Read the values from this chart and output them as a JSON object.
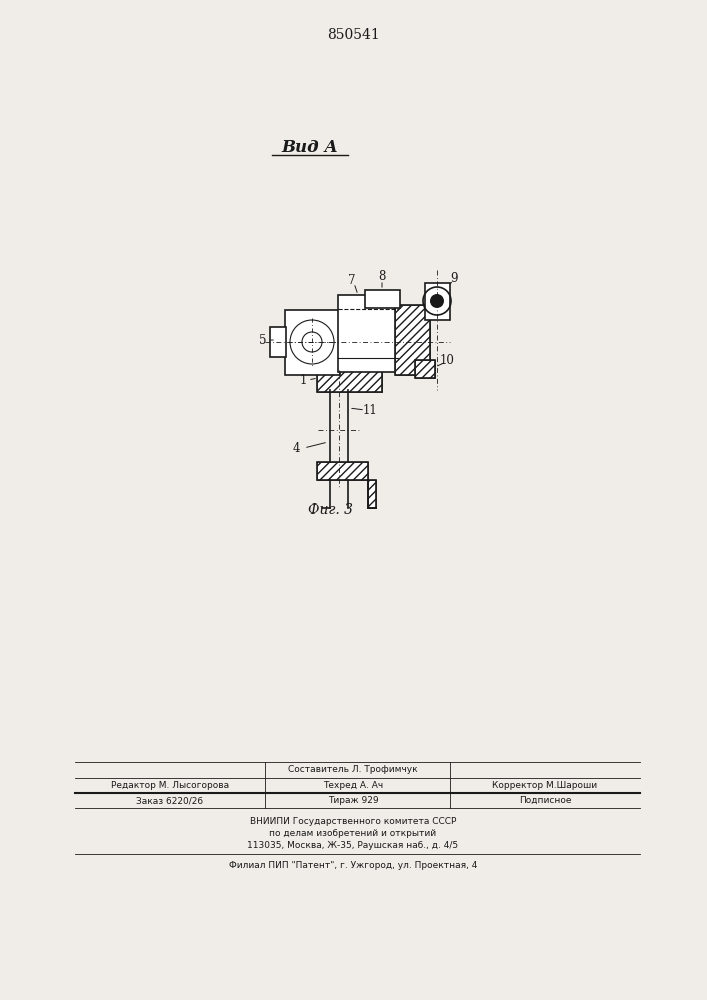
{
  "patent_number": "850541",
  "bg_color": "#f0ede8",
  "line_color": "#1a1a1a",
  "fig_label": "Фиг. 3",
  "title_view": "Вид А",
  "footer": {
    "line1_center": "Составитель Л. Трофимчук",
    "line2_left": "Редактор М. Лысогорова",
    "line2_center": "Техред А. Ач",
    "line2_right": "Корректор М.Шароши",
    "line3_left": "Заказ 6220/26",
    "line3_center": "Тираж 929",
    "line3_right": "Подписное",
    "line4": "ВНИИПИ Государственного комитета СССР",
    "line5": "по делам изобретений и открытий",
    "line6": "113035, Москва, Ж-35, Раушская наб., д. 4/5",
    "line7": "Филиал ПИП \"Патент\", г. Ужгород, ул. Проектная, 4"
  }
}
